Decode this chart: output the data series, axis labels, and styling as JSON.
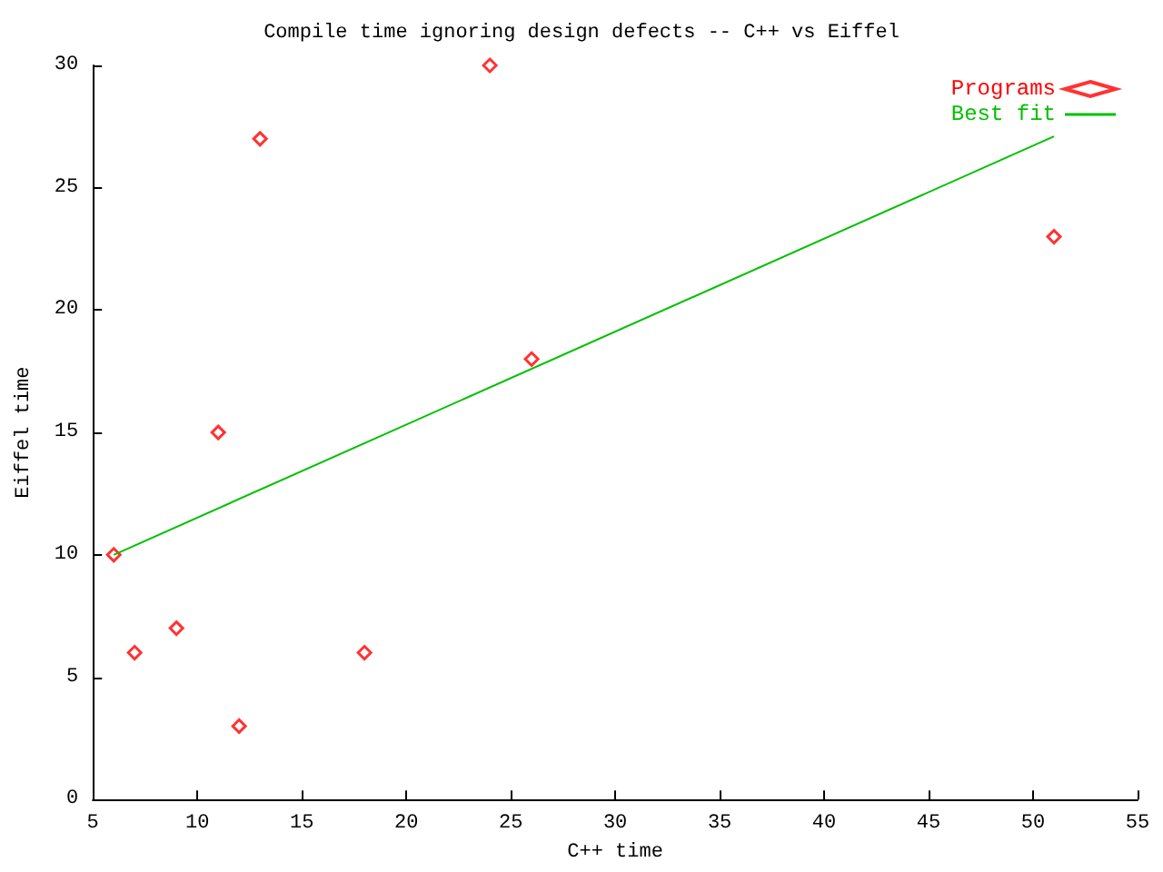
{
  "chart_data": {
    "type": "scatter",
    "title": "Compile time ignoring design defects -- C++ vs Eiffel",
    "xlabel": "C++ time",
    "ylabel": "Eiffel time",
    "xlim": [
      5,
      55
    ],
    "xticks": [
      5,
      10,
      15,
      20,
      25,
      30,
      35,
      40,
      45,
      50,
      55
    ],
    "ylim": [
      0,
      30
    ],
    "yticks": [
      0,
      5,
      10,
      15,
      20,
      25,
      30
    ],
    "grid": false,
    "legend": "top right",
    "series": [
      {
        "name": "Programs",
        "color": "#ff0000",
        "marker": "diamond",
        "x": [
          6,
          7,
          9,
          11,
          12,
          13,
          18,
          24,
          26,
          51
        ],
        "values": [
          10,
          6,
          7,
          15,
          3,
          27,
          6,
          30,
          18,
          23
        ]
      },
      {
        "name": "Best fit",
        "type": "line",
        "color": "#00c000",
        "x": [
          6,
          51
        ],
        "values": [
          10,
          27.1
        ]
      }
    ]
  }
}
